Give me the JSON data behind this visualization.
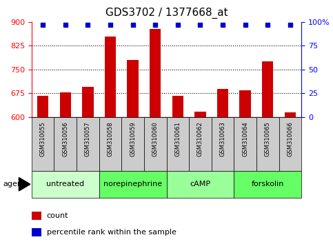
{
  "title": "GDS3702 / 1377668_at",
  "samples": [
    "GSM310055",
    "GSM310056",
    "GSM310057",
    "GSM310058",
    "GSM310059",
    "GSM310060",
    "GSM310061",
    "GSM310062",
    "GSM310063",
    "GSM310064",
    "GSM310065",
    "GSM310066"
  ],
  "counts": [
    668,
    678,
    695,
    855,
    780,
    878,
    668,
    618,
    690,
    685,
    775,
    615
  ],
  "percentiles": [
    97,
    97,
    97,
    97,
    97,
    97,
    97,
    97,
    97,
    97,
    97,
    97
  ],
  "ylim_left": [
    600,
    900
  ],
  "ylim_right": [
    0,
    100
  ],
  "yticks_left": [
    600,
    675,
    750,
    825,
    900
  ],
  "yticks_right": [
    0,
    25,
    50,
    75,
    100
  ],
  "ytick_right_labels": [
    "0",
    "25",
    "50",
    "75",
    "100%"
  ],
  "groups": [
    {
      "label": "untreated",
      "start": 0,
      "end": 3,
      "color": "#ccffcc"
    },
    {
      "label": "norepinephrine",
      "start": 3,
      "end": 6,
      "color": "#66ff66"
    },
    {
      "label": "cAMP",
      "start": 6,
      "end": 9,
      "color": "#99ff99"
    },
    {
      "label": "forskolin",
      "start": 9,
      "end": 12,
      "color": "#66ff66"
    }
  ],
  "bar_color": "#cc0000",
  "dot_color": "#0000cc",
  "agent_label": "agent",
  "title_fontsize": 11,
  "tick_fontsize": 8,
  "sample_fontsize": 6,
  "group_fontsize": 8,
  "legend_fontsize": 8,
  "sample_bg_color": "#cccccc",
  "bar_width": 0.5,
  "percentile_marker_size": 5,
  "grid_ticks": [
    675,
    750,
    825
  ]
}
